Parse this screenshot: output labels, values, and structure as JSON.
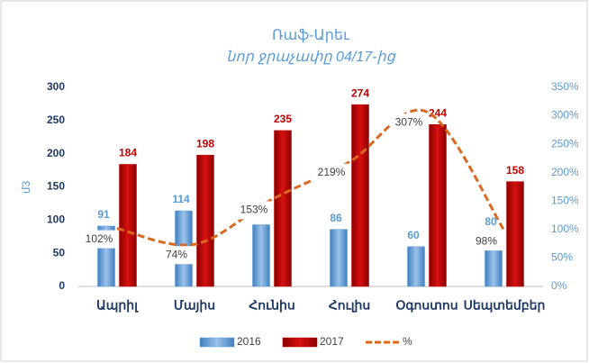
{
  "chart_data": {
    "type": "bar-line",
    "title": "Ռաֆ-Արեւ",
    "subtitle": "նոր ջրաչափը 04/17-ից",
    "ylabel": "մ3",
    "categories": [
      "Ապրիլ",
      "Մայիս",
      "Հունիս",
      "Հուլիս",
      "Օգոստոս",
      "Սեպտեմբեր"
    ],
    "series": [
      {
        "name": "2016",
        "type": "bar",
        "color": "#5b9bd5",
        "values": [
          91,
          114,
          93,
          86,
          60,
          80
        ]
      },
      {
        "name": "2017",
        "type": "bar",
        "color": "#c00000",
        "values": [
          184,
          198,
          235,
          274,
          244,
          158
        ]
      },
      {
        "name": "%",
        "type": "line",
        "axis": "y2",
        "color": "#d9691e",
        "values": [
          102,
          74,
          153,
          219,
          307,
          98
        ],
        "value_labels": [
          "102%",
          "74%",
          "153%",
          "219%",
          "307%",
          "98%"
        ]
      }
    ],
    "ylim": [
      0,
      300
    ],
    "yticks": [
      0,
      50,
      100,
      150,
      200,
      250,
      300
    ],
    "y2lim": [
      0,
      350
    ],
    "y2ticks": [
      {
        "value": 0,
        "label": "0%"
      },
      {
        "value": 50,
        "label": "50%"
      },
      {
        "value": 100,
        "label": "100%"
      },
      {
        "value": 150,
        "label": "150%"
      },
      {
        "value": 200,
        "label": "200%"
      },
      {
        "value": 250,
        "label": "250%"
      },
      {
        "value": 300,
        "label": "300%"
      },
      {
        "value": 350,
        "label": "350%"
      }
    ],
    "legend": "bottom"
  }
}
